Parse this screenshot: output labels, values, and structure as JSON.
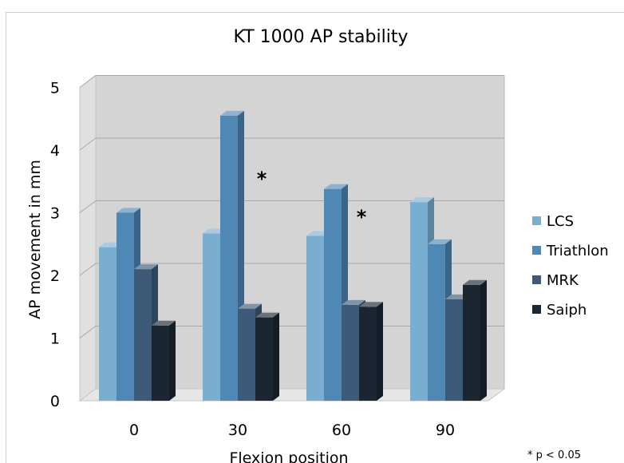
{
  "chart_data": {
    "type": "bar",
    "title": "KT 1000 AP stability",
    "xlabel": "Flexion position",
    "ylabel": "AP movement in mm",
    "categories": [
      "0",
      "30",
      "60",
      "90"
    ],
    "ylim": [
      0,
      5
    ],
    "yticks": [
      "0",
      "1",
      "2",
      "3",
      "4",
      "5"
    ],
    "grid": true,
    "legend_position": "right",
    "series": [
      {
        "name": "LCS",
        "values": [
          2.45,
          2.67,
          2.63,
          3.17
        ],
        "color": "#7aaed0"
      },
      {
        "name": "Triathlon",
        "values": [
          3.0,
          4.55,
          3.38,
          2.5
        ],
        "color": "#4f87b5"
      },
      {
        "name": "MRK",
        "values": [
          2.1,
          1.47,
          1.53,
          1.62
        ],
        "color": "#3d5a78"
      },
      {
        "name": "Saiph",
        "values": [
          1.2,
          1.33,
          1.5,
          1.85
        ],
        "color": "#1b2633"
      }
    ],
    "annotations": [
      {
        "text": "*",
        "category": "30"
      },
      {
        "text": "*",
        "category": "60"
      }
    ],
    "footnote": "* p < 0.05"
  }
}
